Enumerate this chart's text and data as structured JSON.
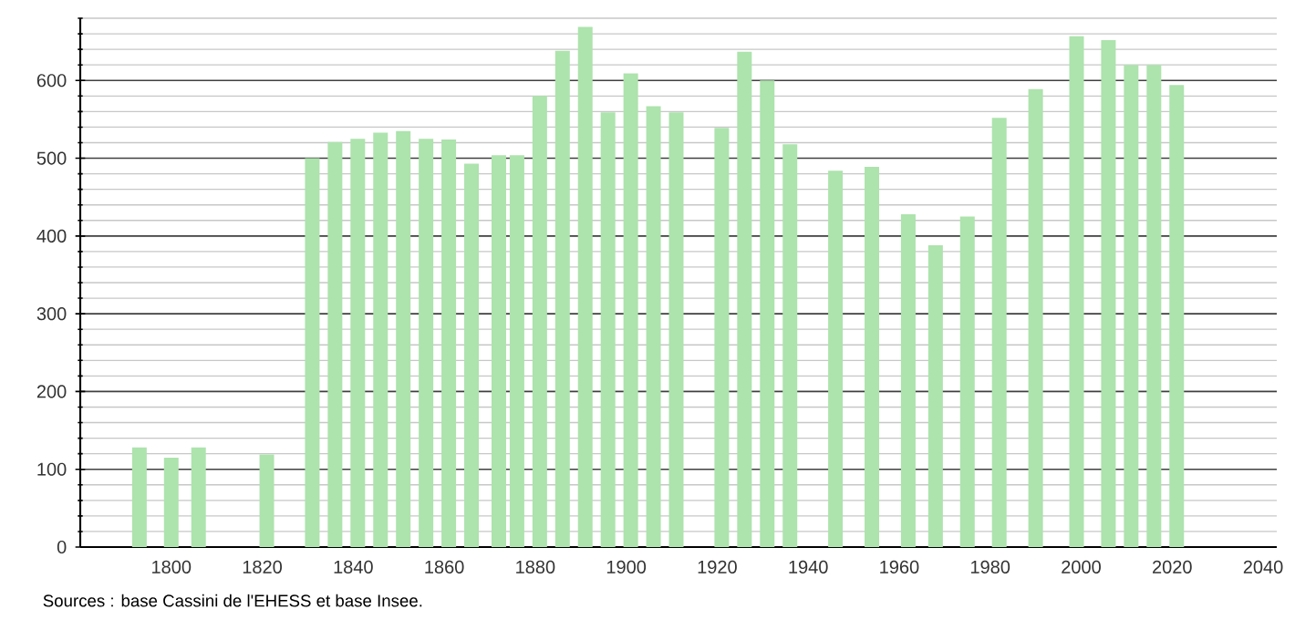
{
  "chart_data": {
    "type": "bar",
    "color": "#ade3ad",
    "grid": "y",
    "x": [
      1793,
      1800,
      1806,
      1821,
      1831,
      1836,
      1841,
      1846,
      1851,
      1856,
      1861,
      1866,
      1872,
      1876,
      1881,
      1886,
      1891,
      1896,
      1901,
      1906,
      1911,
      1921,
      1926,
      1931,
      1936,
      1946,
      1954,
      1962,
      1968,
      1975,
      1982,
      1990,
      1999,
      2006,
      2011,
      2016,
      2021
    ],
    "values": [
      128,
      115,
      128,
      119,
      500,
      521,
      525,
      533,
      535,
      525,
      524,
      493,
      504,
      504,
      580,
      638,
      669,
      559,
      609,
      567,
      559,
      539,
      637,
      600,
      518,
      484,
      489,
      428,
      388,
      425,
      552,
      589,
      657,
      652,
      620,
      620,
      594
    ],
    "xlim": [
      1780,
      2043
    ],
    "ylim": [
      0,
      680
    ],
    "xticks": [
      1800,
      1820,
      1840,
      1860,
      1880,
      1900,
      1920,
      1940,
      1960,
      1980,
      2000,
      2020,
      2040
    ],
    "yticks": [
      0,
      {
        "value": 20,
        "label": null
      },
      {
        "value": 40,
        "label": null
      },
      {
        "value": 60,
        "label": null
      },
      {
        "value": 80,
        "label": null
      },
      100,
      {
        "value": 120,
        "label": null
      },
      {
        "value": 140,
        "label": null
      },
      {
        "value": 160,
        "label": null
      },
      {
        "value": 180,
        "label": null
      },
      200,
      {
        "value": 220,
        "label": null
      },
      {
        "value": 240,
        "label": null
      },
      {
        "value": 260,
        "label": null
      },
      {
        "value": 280,
        "label": null
      },
      300,
      {
        "value": 320,
        "label": null
      },
      {
        "value": 340,
        "label": null
      },
      {
        "value": 360,
        "label": null
      },
      {
        "value": 380,
        "label": null
      },
      400,
      {
        "value": 420,
        "label": null
      },
      {
        "value": 440,
        "label": null
      },
      {
        "value": 460,
        "label": null
      },
      {
        "value": 480,
        "label": null
      },
      500,
      {
        "value": 520,
        "label": null
      },
      {
        "value": 540,
        "label": null
      },
      {
        "value": 560,
        "label": null
      },
      {
        "value": 580,
        "label": null
      },
      600,
      {
        "value": 620,
        "label": null
      },
      {
        "value": 640,
        "label": null
      },
      {
        "value": 660,
        "label": null
      },
      {
        "value": 680,
        "label": null
      }
    ],
    "annotations": [
      "Sources : base Cassini de l'EHESS et base Insee."
    ]
  }
}
